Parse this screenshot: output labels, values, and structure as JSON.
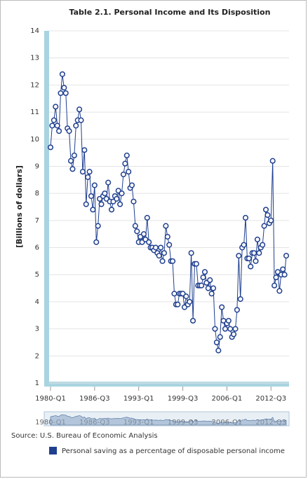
{
  "chart_data": {
    "type": "line",
    "title": "Table 2.1. Personal Income and Its Disposition",
    "y_label": "[Billions of dollars]",
    "source": "Source: U.S. Bureau of Economic Analysis",
    "categories": [
      "1980-Q1",
      null,
      null,
      null,
      null,
      null,
      null,
      null,
      null,
      null,
      null,
      null,
      null,
      null,
      null,
      null,
      null,
      null,
      null,
      null,
      null,
      null,
      null,
      null,
      null,
      null,
      "1986-Q3",
      null,
      null,
      null,
      null,
      null,
      null,
      null,
      null,
      null,
      null,
      null,
      null,
      null,
      null,
      null,
      null,
      null,
      null,
      null,
      null,
      null,
      null,
      null,
      null,
      null,
      "1993-Q1",
      null,
      null,
      null,
      null,
      null,
      null,
      null,
      null,
      null,
      null,
      null,
      null,
      null,
      null,
      null,
      null,
      null,
      null,
      null,
      null,
      null,
      null,
      null,
      null,
      null,
      "1999-Q3",
      null,
      null,
      null,
      null,
      null,
      null,
      null,
      null,
      null,
      null,
      null,
      null,
      null,
      null,
      null,
      null,
      null,
      null,
      null,
      null,
      null,
      null,
      null,
      null,
      null,
      "2006-Q1",
      null,
      null,
      null,
      null,
      null,
      null,
      null,
      null,
      null,
      null,
      null,
      null,
      null,
      null,
      null,
      null,
      null,
      null,
      null,
      null,
      null,
      null,
      null,
      null,
      null,
      "2012-Q3",
      null,
      null,
      null,
      null,
      null,
      null,
      null,
      null,
      null
    ],
    "series": [
      {
        "name": "Personal saving as a percentage of disposable personal income",
        "color": "#1f3f8f",
        "values": [
          9.7,
          10.5,
          10.7,
          11.2,
          10.5,
          10.3,
          11.7,
          12.4,
          11.9,
          11.7,
          10.4,
          10.3,
          9.2,
          8.9,
          9.4,
          10.5,
          10.7,
          11.1,
          10.7,
          8.8,
          9.6,
          7.6,
          8.6,
          8.8,
          7.9,
          7.4,
          8.3,
          6.2,
          6.8,
          7.8,
          7.6,
          7.9,
          8.0,
          7.8,
          8.4,
          7.7,
          7.4,
          7.7,
          7.9,
          7.8,
          8.1,
          7.6,
          8.0,
          8.7,
          9.1,
          9.4,
          8.8,
          8.2,
          8.3,
          7.7,
          6.8,
          6.6,
          6.2,
          6.4,
          6.2,
          6.5,
          6.3,
          7.1,
          6.2,
          6.0,
          6.0,
          5.9,
          6.0,
          5.8,
          5.7,
          6.0,
          5.5,
          5.8,
          6.8,
          6.4,
          6.1,
          5.5,
          5.5,
          4.3,
          3.9,
          3.9,
          4.3,
          4.3,
          4.3,
          3.8,
          4.2,
          3.9,
          4.0,
          5.8,
          3.3,
          5.4,
          5.4,
          4.6,
          4.6,
          4.6,
          4.9,
          5.1,
          4.7,
          4.5,
          4.8,
          4.3,
          4.5,
          3.0,
          2.5,
          2.2,
          2.7,
          3.8,
          3.3,
          3.0,
          3.2,
          3.3,
          3.0,
          2.7,
          2.8,
          3.0,
          3.7,
          5.7,
          4.1,
          6.0,
          6.1,
          7.1,
          5.6,
          5.6,
          5.3,
          5.8,
          5.8,
          5.5,
          6.3,
          5.8,
          6.0,
          6.1,
          6.8,
          7.4,
          7.2,
          6.9,
          7.0,
          9.2,
          4.6,
          4.9,
          5.1,
          4.4,
          5.0,
          5.2,
          5.0,
          5.7
        ]
      }
    ],
    "ylim": [
      1,
      14
    ],
    "yticks": [
      1,
      2,
      3,
      4,
      5,
      6,
      7,
      8,
      9,
      10,
      11,
      12,
      13,
      14
    ],
    "grid": true,
    "legend": "bottom"
  }
}
